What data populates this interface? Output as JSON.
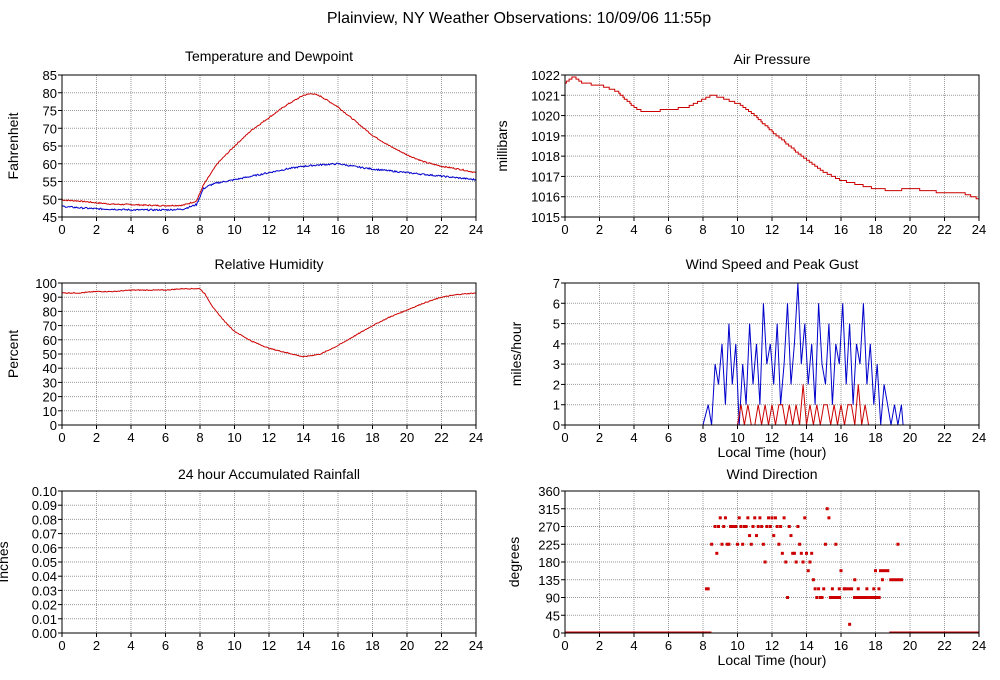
{
  "page": {
    "title": "Plainview, NY Weather Observations: 10/09/06 11:55p"
  },
  "colors": {
    "red": "#cc0000",
    "blue": "#0000cc",
    "grid": "#9a9a9a",
    "frame": "#000000"
  },
  "chart_data": [
    {
      "id": "temp",
      "type": "line",
      "title": "Temperature and Dewpoint",
      "xlabel": "",
      "ylabel": "Fahrenheit",
      "xlim": [
        0,
        24
      ],
      "ylim": [
        45,
        85
      ],
      "xticks": [
        0,
        2,
        4,
        6,
        8,
        10,
        12,
        14,
        16,
        18,
        20,
        22,
        24
      ],
      "yticks": [
        45,
        50,
        55,
        60,
        65,
        70,
        75,
        80,
        85
      ],
      "grid": true,
      "series": [
        {
          "color": "red",
          "noise": 0.35,
          "x": [
            0,
            1,
            2,
            3,
            4,
            5,
            6,
            7,
            7.8,
            8.2,
            8.6,
            9,
            10,
            11,
            12,
            13,
            14,
            14.5,
            15,
            16,
            17,
            18,
            19,
            20,
            21,
            22,
            23,
            24
          ],
          "y": [
            49.8,
            49.5,
            49,
            48.6,
            48.5,
            48.3,
            48.2,
            48.3,
            49.5,
            54,
            57,
            60,
            65,
            69.5,
            73,
            76.5,
            79.3,
            79.8,
            79,
            76,
            72,
            68,
            65,
            62.5,
            60.5,
            59.3,
            58.5,
            57.5
          ]
        },
        {
          "color": "blue",
          "noise": 0.45,
          "x": [
            0,
            1,
            2,
            3,
            4,
            5,
            6,
            7,
            7.8,
            8.2,
            8.6,
            9,
            10,
            11,
            12,
            13,
            14,
            15,
            16,
            17,
            18,
            19,
            20,
            21,
            22,
            23,
            24
          ],
          "y": [
            48,
            47.6,
            47.3,
            47.2,
            47,
            47,
            47,
            47.2,
            48.5,
            53,
            54,
            54.6,
            55.5,
            56.5,
            57.5,
            58.5,
            59.3,
            59.7,
            60,
            59.2,
            58.5,
            58,
            57.5,
            57,
            56.5,
            56,
            55.5
          ]
        }
      ]
    },
    {
      "id": "pressure",
      "type": "line",
      "title": "Air Pressure",
      "xlabel": "",
      "ylabel": "millibars",
      "xlim": [
        0,
        24
      ],
      "ylim": [
        1015,
        1022
      ],
      "xticks": [
        0,
        2,
        4,
        6,
        8,
        10,
        12,
        14,
        16,
        18,
        20,
        22,
        24
      ],
      "yticks": [
        1015,
        1016,
        1017,
        1018,
        1019,
        1020,
        1021,
        1022
      ],
      "grid": true,
      "series": [
        {
          "color": "red",
          "step": 0.1,
          "x": [
            0,
            0.3,
            0.5,
            1,
            2,
            3,
            4,
            4.5,
            5,
            6,
            7,
            8,
            8.5,
            9,
            10,
            11,
            12,
            13,
            14,
            15,
            16,
            17,
            18,
            19,
            20,
            21,
            22,
            23,
            24
          ],
          "y": [
            1021.6,
            1021.8,
            1021.9,
            1021.6,
            1021.5,
            1021.2,
            1020.4,
            1020.2,
            1020.2,
            1020.3,
            1020.4,
            1020.8,
            1021,
            1020.9,
            1020.6,
            1020.0,
            1019.2,
            1018.5,
            1017.8,
            1017.2,
            1016.8,
            1016.6,
            1016.4,
            1016.3,
            1016.4,
            1016.3,
            1016.2,
            1016.2,
            1015.9
          ]
        }
      ]
    },
    {
      "id": "humidity",
      "type": "line",
      "title": "Relative Humidity",
      "xlabel": "",
      "ylabel": "Percent",
      "xlim": [
        0,
        24
      ],
      "ylim": [
        0,
        100
      ],
      "xticks": [
        0,
        2,
        4,
        6,
        8,
        10,
        12,
        14,
        16,
        18,
        20,
        22,
        24
      ],
      "yticks": [
        0,
        10,
        20,
        30,
        40,
        50,
        60,
        70,
        80,
        90,
        100
      ],
      "grid": true,
      "series": [
        {
          "color": "red",
          "noise": 0.6,
          "x": [
            0,
            1,
            2,
            3,
            4,
            5,
            6,
            7,
            8,
            8.3,
            8.8,
            9.5,
            10,
            11,
            12,
            13,
            14,
            15,
            16,
            17,
            18,
            19,
            20,
            21,
            22,
            23,
            24
          ],
          "y": [
            93,
            93,
            94,
            94,
            95,
            95,
            95,
            96,
            96,
            92,
            82,
            72,
            66,
            59,
            54,
            51,
            48,
            50,
            56,
            63,
            70,
            76,
            81,
            86,
            90,
            92,
            93
          ]
        }
      ]
    },
    {
      "id": "wind",
      "type": "line",
      "title": "Wind Speed and Peak Gust",
      "xlabel": "Local Time (hour)",
      "ylabel": "miles/hour",
      "xlim": [
        0,
        24
      ],
      "ylim": [
        0,
        7
      ],
      "xticks": [
        0,
        2,
        4,
        6,
        8,
        10,
        12,
        14,
        16,
        18,
        20,
        22,
        24
      ],
      "yticks": [
        0,
        1,
        2,
        3,
        4,
        5,
        6,
        7
      ],
      "grid": true,
      "series": [
        {
          "color": "blue",
          "x": [
            0,
            8.0,
            8.3,
            8.5,
            8.7,
            8.9,
            9.1,
            9.3,
            9.5,
            9.7,
            9.9,
            10.1,
            10.3,
            10.5,
            10.7,
            10.9,
            11.1,
            11.3,
            11.5,
            11.7,
            11.9,
            12.1,
            12.3,
            12.5,
            12.7,
            12.9,
            13.1,
            13.3,
            13.5,
            13.7,
            13.9,
            14.1,
            14.3,
            14.5,
            14.7,
            14.9,
            15.1,
            15.3,
            15.5,
            15.7,
            15.9,
            16.1,
            16.3,
            16.5,
            16.7,
            16.9,
            17.1,
            17.3,
            17.5,
            17.7,
            17.9,
            18.1,
            18.3,
            18.5,
            18.7,
            18.9,
            19.1,
            19.3,
            19.5,
            19.6,
            24
          ],
          "y": [
            0,
            0,
            1,
            0,
            3,
            2,
            4,
            1,
            5,
            2,
            4,
            0,
            3,
            1,
            5,
            2,
            4,
            1,
            6,
            3,
            4,
            2,
            5,
            1,
            3,
            6,
            2,
            4,
            7,
            3,
            5,
            2,
            4,
            1,
            6,
            3,
            2,
            5,
            1,
            4,
            3,
            6,
            2,
            5,
            1,
            4,
            3,
            6,
            2,
            4,
            1,
            3,
            0,
            2,
            1,
            0,
            1,
            0,
            1,
            0,
            0
          ]
        },
        {
          "color": "red",
          "x": [
            0,
            10.0,
            10.2,
            10.4,
            10.6,
            10.8,
            11.0,
            11.2,
            11.4,
            11.6,
            11.8,
            12.0,
            12.2,
            12.4,
            12.6,
            12.8,
            13.0,
            13.2,
            13.4,
            13.6,
            13.8,
            14.0,
            14.2,
            14.4,
            14.6,
            14.8,
            15.0,
            15.2,
            15.4,
            15.6,
            15.8,
            16.0,
            16.2,
            16.4,
            16.6,
            16.8,
            17.0,
            17.2,
            17.4,
            17.6,
            24
          ],
          "y": [
            0,
            0,
            1,
            0,
            1,
            0,
            0,
            1,
            0,
            1,
            0,
            1,
            0,
            1,
            1,
            0,
            1,
            0,
            1,
            0,
            2,
            0,
            1,
            0,
            1,
            0,
            1,
            1,
            0,
            1,
            0,
            1,
            0,
            1,
            1,
            0,
            2,
            0,
            1,
            0,
            0
          ]
        }
      ]
    },
    {
      "id": "rain",
      "type": "line",
      "title": "24 hour Accumulated Rainfall",
      "xlabel": "",
      "ylabel": "Inches",
      "xlim": [
        0,
        24
      ],
      "ylim": [
        0,
        0.1
      ],
      "xticks": [
        0,
        2,
        4,
        6,
        8,
        10,
        12,
        14,
        16,
        18,
        20,
        22,
        24
      ],
      "yticks": [
        "0.00",
        "0.01",
        "0.02",
        "0.03",
        "0.04",
        "0.05",
        "0.06",
        "0.07",
        "0.08",
        "0.09",
        "0.10"
      ],
      "grid": true,
      "series": [
        {
          "color": "red",
          "x": [
            0,
            24
          ],
          "y": [
            0,
            0
          ]
        }
      ]
    },
    {
      "id": "direction",
      "type": "scatter",
      "title": "Wind Direction",
      "xlabel": "Local Time (hour)",
      "ylabel": "degrees",
      "xlim": [
        0,
        24
      ],
      "ylim": [
        0,
        360
      ],
      "xticks": [
        0,
        2,
        4,
        6,
        8,
        10,
        12,
        14,
        16,
        18,
        20,
        22,
        24
      ],
      "yticks": [
        0,
        45,
        90,
        135,
        180,
        225,
        270,
        315,
        360
      ],
      "grid": true,
      "series": [
        {
          "color": "red",
          "segments": [
            [
              0,
              8.4,
              0
            ],
            [
              18.8,
              24,
              0
            ],
            [
              18.8,
              19.6,
              135
            ],
            [
              15.3,
              16.0,
              90
            ],
            [
              16.1,
              16.7,
              112
            ],
            [
              16.7,
              17.6,
              90
            ],
            [
              17.6,
              18.3,
              90
            ],
            [
              18.2,
              18.8,
              158
            ]
          ],
          "x": [
            8.2,
            8.3,
            8.4,
            8.5,
            8.7,
            8.8,
            8.9,
            9.0,
            9.1,
            9.2,
            9.3,
            9.4,
            9.5,
            9.6,
            9.7,
            9.8,
            9.9,
            10.0,
            10.1,
            10.2,
            10.3,
            10.4,
            10.5,
            10.6,
            10.7,
            10.8,
            10.9,
            11.0,
            11.1,
            11.2,
            11.3,
            11.4,
            11.5,
            11.6,
            11.7,
            11.8,
            11.9,
            12.0,
            12.1,
            12.2,
            12.3,
            12.4,
            12.5,
            12.6,
            12.7,
            12.8,
            12.9,
            13.0,
            13.1,
            13.2,
            13.3,
            13.4,
            13.5,
            13.6,
            13.7,
            13.8,
            13.9,
            14.0,
            14.1,
            14.2,
            14.3,
            14.4,
            14.5,
            14.6,
            14.7,
            14.8,
            14.9,
            15.0,
            15.1,
            15.2,
            15.3,
            15.5,
            15.7,
            15.8,
            15.9,
            16.0,
            16.2,
            16.5,
            16.8,
            17.0,
            17.1,
            17.3,
            17.5,
            17.7,
            17.9,
            18.0,
            18.2,
            18.4,
            19.3,
            8.0,
            8.1
          ],
          "y": [
            112,
            112,
            0,
            225,
            270,
            202,
            270,
            292,
            225,
            270,
            292,
            225,
            225,
            270,
            270,
            270,
            270,
            225,
            292,
            270,
            225,
            270,
            270,
            292,
            247,
            225,
            270,
            292,
            247,
            270,
            292,
            270,
            225,
            180,
            270,
            292,
            270,
            292,
            247,
            292,
            270,
            225,
            270,
            202,
            292,
            180,
            90,
            270,
            247,
            202,
            202,
            180,
            270,
            225,
            202,
            180,
            292,
            202,
            158,
            180,
            202,
            135,
            112,
            90,
            112,
            90,
            90,
            112,
            225,
            315,
            292,
            112,
            225,
            90,
            112,
            158,
            112,
            22,
            135,
            112,
            90,
            90,
            112,
            90,
            112,
            158,
            112,
            135,
            225,
            0,
            0
          ]
        }
      ]
    }
  ]
}
